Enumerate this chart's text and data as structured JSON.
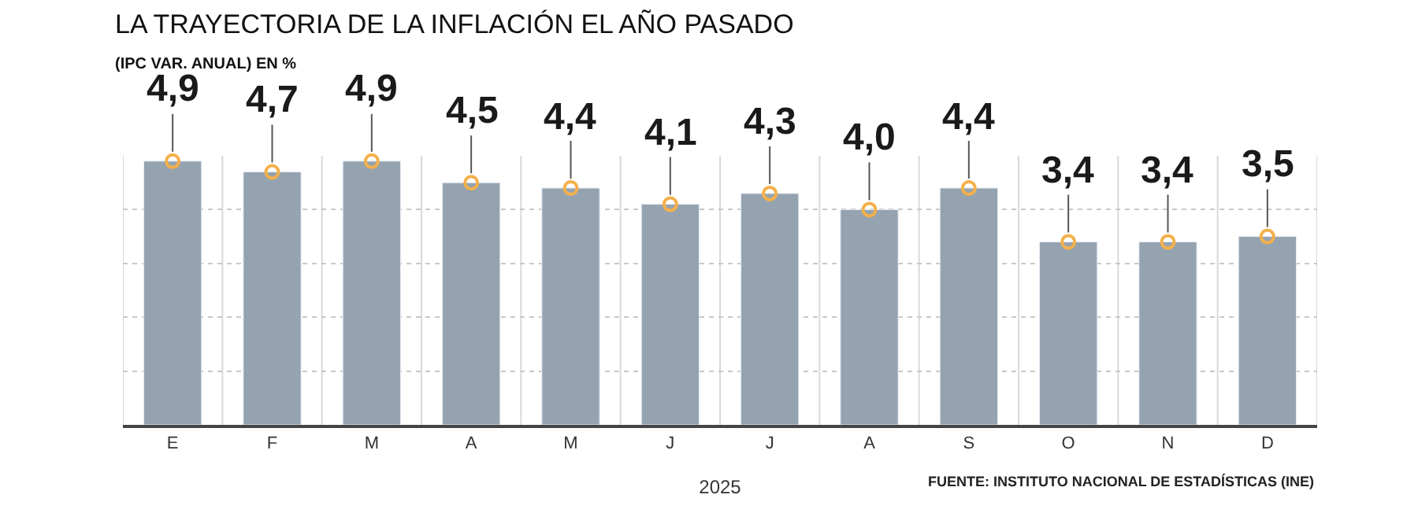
{
  "chart_data": {
    "type": "bar",
    "title": "LA TRAYECTORIA DE LA INFLACIÓN EL AÑO PASADO",
    "subtitle": "(IPC VAR. ANUAL) EN %",
    "xlabel": "2025",
    "categories": [
      "E",
      "F",
      "M",
      "A",
      "M",
      "J",
      "J",
      "A",
      "S",
      "O",
      "N",
      "D"
    ],
    "values": [
      4.9,
      4.7,
      4.9,
      4.5,
      4.4,
      4.1,
      4.3,
      4.0,
      4.4,
      3.4,
      3.4,
      3.5
    ],
    "value_labels": [
      "4,9",
      "4,7",
      "4,9",
      "4,5",
      "4,4",
      "4,1",
      "4,3",
      "4,0",
      "4,4",
      "3,4",
      "3,4",
      "3,5"
    ],
    "color": "#95a3b0",
    "marker": "circle",
    "ylim": [
      0,
      5
    ],
    "tick_labels": "x",
    "grid": true,
    "annotations": [
      "FUENTE: INSTITUTO NACIONAL DE ESTADÍSTICAS (INE)"
    ]
  }
}
